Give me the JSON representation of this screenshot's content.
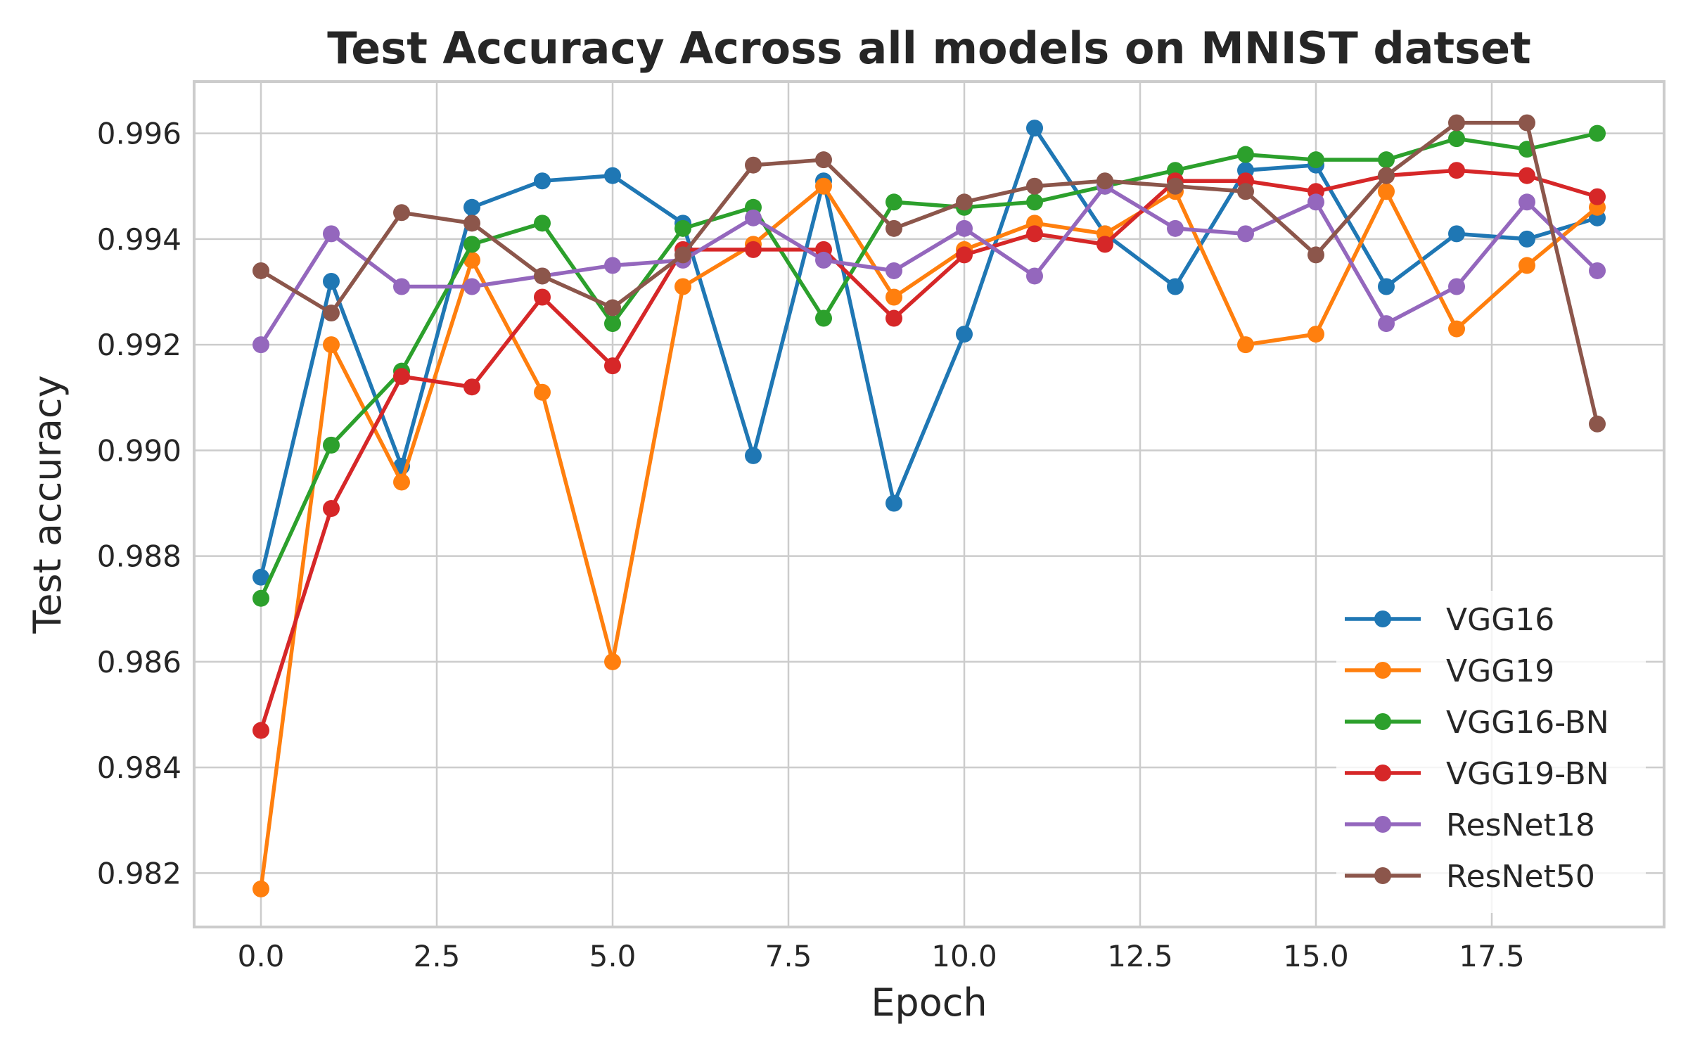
{
  "chart_data": {
    "type": "line",
    "title": "Test Accuracy Across all models on MNIST datset",
    "xlabel": "Epoch",
    "ylabel": "Test accuracy",
    "xlim": [
      -0.95,
      19.95
    ],
    "ylim": [
      0.98098,
      0.99698
    ],
    "x_ticks": [
      0.0,
      2.5,
      5.0,
      7.5,
      10.0,
      12.5,
      15.0,
      17.5
    ],
    "x_tick_labels": [
      "0.0",
      "2.5",
      "5.0",
      "7.5",
      "10.0",
      "12.5",
      "15.0",
      "17.5"
    ],
    "y_ticks": [
      0.982,
      0.984,
      0.986,
      0.988,
      0.99,
      0.992,
      0.994,
      0.996
    ],
    "y_tick_labels": [
      "0.982",
      "0.984",
      "0.986",
      "0.988",
      "0.990",
      "0.992",
      "0.994",
      "0.996"
    ],
    "grid": true,
    "legend_position": "lower-right",
    "x": [
      0,
      1,
      2,
      3,
      4,
      5,
      6,
      7,
      8,
      9,
      10,
      11,
      12,
      13,
      14,
      15,
      16,
      17,
      18,
      19
    ],
    "series": [
      {
        "name": "VGG16",
        "color": "#1f77b4",
        "values": [
          0.9876,
          0.9932,
          0.9897,
          0.9946,
          0.9951,
          0.9952,
          0.9943,
          0.9899,
          0.9951,
          0.989,
          0.9922,
          0.9961,
          0.9941,
          0.9931,
          0.9953,
          0.9954,
          0.9931,
          0.9941,
          0.994,
          0.9944
        ]
      },
      {
        "name": "VGG19",
        "color": "#ff7f0e",
        "values": [
          0.9817,
          0.992,
          0.9894,
          0.9936,
          0.9911,
          0.986,
          0.9931,
          0.9939,
          0.995,
          0.9929,
          0.9938,
          0.9943,
          0.9941,
          0.9949,
          0.992,
          0.9922,
          0.9949,
          0.9923,
          0.9935,
          0.9946
        ]
      },
      {
        "name": "VGG16-BN",
        "color": "#2ca02c",
        "values": [
          0.9872,
          0.9901,
          0.9915,
          0.9939,
          0.9943,
          0.9924,
          0.9942,
          0.9946,
          0.9925,
          0.9947,
          0.9946,
          0.9947,
          0.995,
          0.9953,
          0.9956,
          0.9955,
          0.9955,
          0.9959,
          0.9957,
          0.996
        ]
      },
      {
        "name": "VGG19-BN",
        "color": "#d62728",
        "values": [
          0.9847,
          0.9889,
          0.9914,
          0.9912,
          0.9929,
          0.9916,
          0.9938,
          0.9938,
          0.9938,
          0.9925,
          0.9937,
          0.9941,
          0.9939,
          0.9951,
          0.9951,
          0.9949,
          0.9952,
          0.9953,
          0.9952,
          0.9948
        ]
      },
      {
        "name": "ResNet18",
        "color": "#9467bd",
        "values": [
          0.992,
          0.9941,
          0.9931,
          0.9931,
          0.9933,
          0.9935,
          0.9936,
          0.9944,
          0.9936,
          0.9934,
          0.9942,
          0.9933,
          0.995,
          0.9942,
          0.9941,
          0.9947,
          0.9924,
          0.9931,
          0.9947,
          0.9934
        ]
      },
      {
        "name": "ResNet50",
        "color": "#8c564b",
        "values": [
          0.9934,
          0.9926,
          0.9945,
          0.9943,
          0.9933,
          0.9927,
          0.9937,
          0.9954,
          0.9955,
          0.9942,
          0.9947,
          0.995,
          0.9951,
          0.995,
          0.9949,
          0.9937,
          0.9952,
          0.9962,
          0.9962,
          0.9905
        ]
      }
    ]
  }
}
